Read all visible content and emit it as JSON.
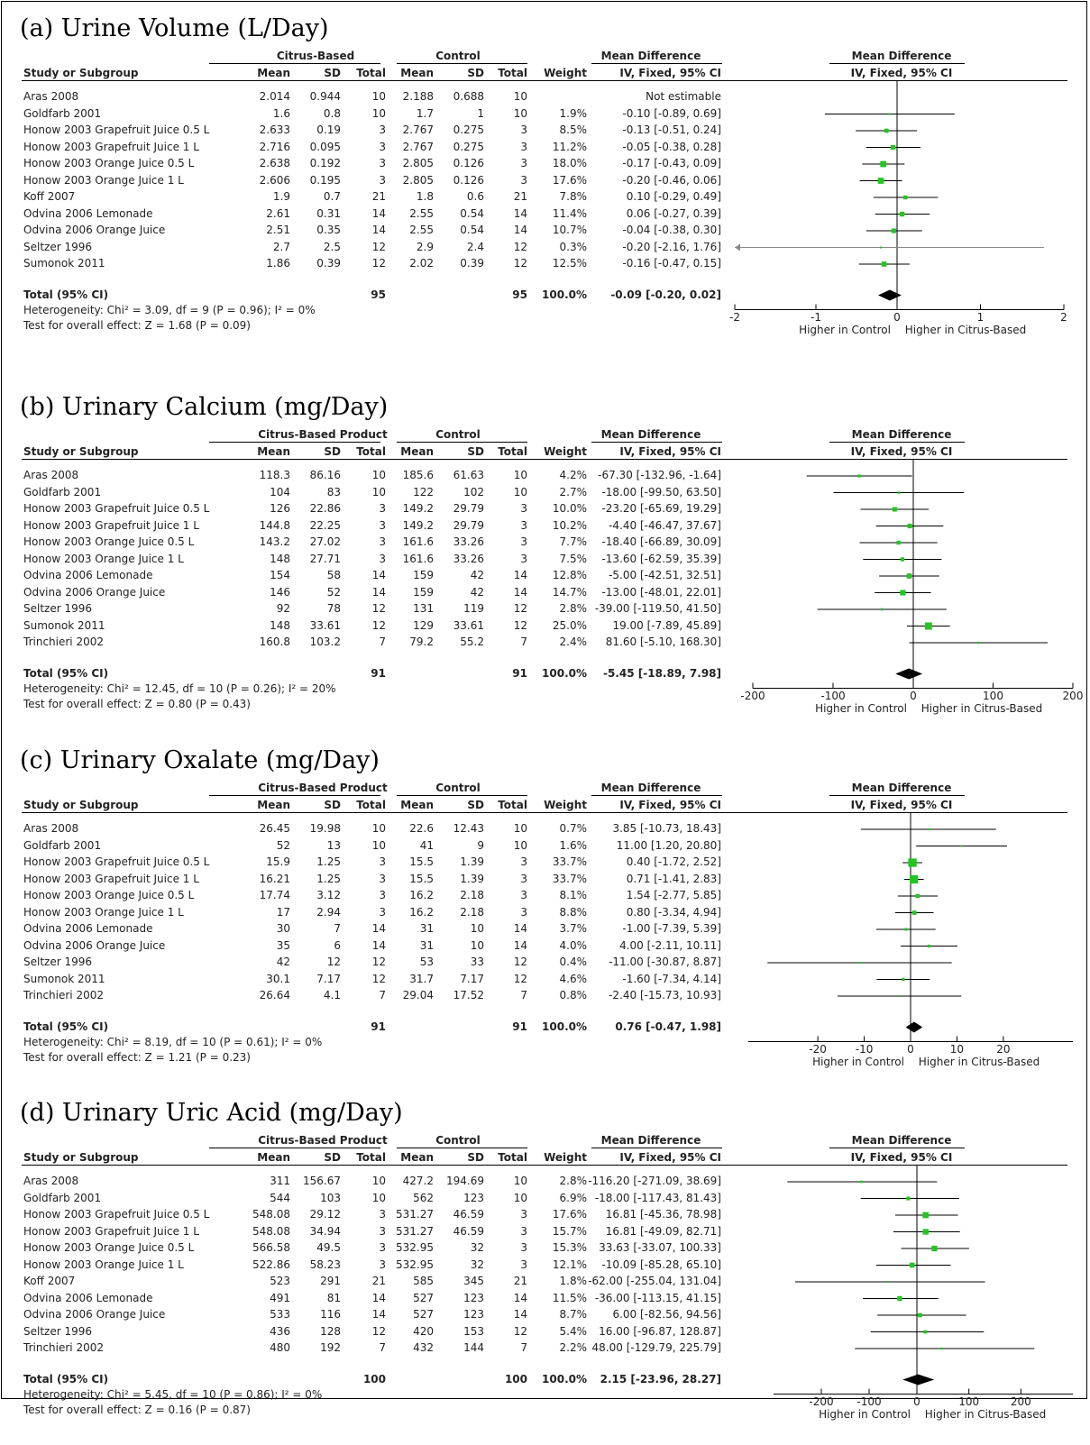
{
  "headers": {
    "study": "Study or Subgroup",
    "control": "Control",
    "mean": "Mean",
    "sd": "SD",
    "total": "Total",
    "weight": "Weight",
    "md_title": "Mean Difference",
    "md_method": "IV, Fixed, 95% CI",
    "higher_control": "Higher in Control",
    "higher_citrus": "Higher in Citrus-Based"
  },
  "colors": {
    "marker": "#22c522",
    "diamond": "#000000",
    "line": "#000000",
    "grey_line": "#888888"
  },
  "chart_data": [
    {
      "type": "forest",
      "title": "(a) Urine Volume (L/Day)",
      "group_label": "Citrus-Based",
      "xticks": [
        -2,
        -1,
        0,
        1,
        2
      ],
      "xlim": [
        -2,
        2
      ],
      "studies": [
        {
          "name": "Aras 2008",
          "c_mean": "2.014",
          "c_sd": "0.944",
          "c_total": "10",
          "k_mean": "2.188",
          "k_sd": "0.688",
          "k_total": "10",
          "weight": "",
          "ci_text": "Not estimable",
          "md": null,
          "lo": null,
          "hi": null
        },
        {
          "name": "Goldfarb 2001",
          "c_mean": "1.6",
          "c_sd": "0.8",
          "c_total": "10",
          "k_mean": "1.7",
          "k_sd": "1",
          "k_total": "10",
          "weight": "1.9%",
          "ci_text": "-0.10 [-0.89, 0.69]",
          "md": -0.1,
          "lo": -0.89,
          "hi": 0.69
        },
        {
          "name": "Honow 2003 Grapefruit Juice 0.5 L",
          "c_mean": "2.633",
          "c_sd": "0.19",
          "c_total": "3",
          "k_mean": "2.767",
          "k_sd": "0.275",
          "k_total": "3",
          "weight": "8.5%",
          "ci_text": "-0.13 [-0.51, 0.24]",
          "md": -0.13,
          "lo": -0.51,
          "hi": 0.24
        },
        {
          "name": "Honow 2003 Grapefruit Juice 1 L",
          "c_mean": "2.716",
          "c_sd": "0.095",
          "c_total": "3",
          "k_mean": "2.767",
          "k_sd": "0.275",
          "k_total": "3",
          "weight": "11.2%",
          "ci_text": "-0.05 [-0.38, 0.28]",
          "md": -0.05,
          "lo": -0.38,
          "hi": 0.28
        },
        {
          "name": "Honow 2003 Orange Juice 0.5 L",
          "c_mean": "2.638",
          "c_sd": "0.192",
          "c_total": "3",
          "k_mean": "2.805",
          "k_sd": "0.126",
          "k_total": "3",
          "weight": "18.0%",
          "ci_text": "-0.17 [-0.43, 0.09]",
          "md": -0.17,
          "lo": -0.43,
          "hi": 0.09
        },
        {
          "name": "Honow 2003 Orange Juice 1 L",
          "c_mean": "2.606",
          "c_sd": "0.195",
          "c_total": "3",
          "k_mean": "2.805",
          "k_sd": "0.126",
          "k_total": "3",
          "weight": "17.6%",
          "ci_text": "-0.20 [-0.46, 0.06]",
          "md": -0.2,
          "lo": -0.46,
          "hi": 0.06
        },
        {
          "name": "Koff 2007",
          "c_mean": "1.9",
          "c_sd": "0.7",
          "c_total": "21",
          "k_mean": "1.8",
          "k_sd": "0.6",
          "k_total": "21",
          "weight": "7.8%",
          "ci_text": "0.10 [-0.29, 0.49]",
          "md": 0.1,
          "lo": -0.29,
          "hi": 0.49
        },
        {
          "name": "Odvina 2006 Lemonade",
          "c_mean": "2.61",
          "c_sd": "0.31",
          "c_total": "14",
          "k_mean": "2.55",
          "k_sd": "0.54",
          "k_total": "14",
          "weight": "11.4%",
          "ci_text": "0.06 [-0.27, 0.39]",
          "md": 0.06,
          "lo": -0.27,
          "hi": 0.39
        },
        {
          "name": "Odvina 2006 Orange Juice",
          "c_mean": "2.51",
          "c_sd": "0.35",
          "c_total": "14",
          "k_mean": "2.55",
          "k_sd": "0.54",
          "k_total": "14",
          "weight": "10.7%",
          "ci_text": "-0.04 [-0.38, 0.30]",
          "md": -0.04,
          "lo": -0.38,
          "hi": 0.3
        },
        {
          "name": "Seltzer 1996",
          "c_mean": "2.7",
          "c_sd": "2.5",
          "c_total": "12",
          "k_mean": "2.9",
          "k_sd": "2.4",
          "k_total": "12",
          "weight": "0.3%",
          "ci_text": "-0.20 [-2.16, 1.76]",
          "md": -0.2,
          "lo": -2.16,
          "hi": 1.76
        },
        {
          "name": "Sumonok 2011",
          "c_mean": "1.86",
          "c_sd": "0.39",
          "c_total": "12",
          "k_mean": "2.02",
          "k_sd": "0.39",
          "k_total": "12",
          "weight": "12.5%",
          "ci_text": "-0.16 [-0.47, 0.15]",
          "md": -0.16,
          "lo": -0.47,
          "hi": 0.15
        }
      ],
      "total": {
        "label": "Total (95% CI)",
        "c_total": "95",
        "k_total": "95",
        "weight": "100.0%",
        "ci_text": "-0.09 [-0.20, 0.02]",
        "md": -0.09,
        "lo": -0.2,
        "hi": 0.02
      },
      "heterogeneity": "Heterogeneity: Chi² = 3.09, df = 9 (P = 0.96); I² = 0%",
      "overall": "Test for overall effect: Z = 1.68 (P = 0.09)"
    },
    {
      "type": "forest",
      "title": "(b) Urinary Calcium (mg/Day)",
      "group_label": "Citrus-Based Product",
      "xticks": [
        -200,
        -100,
        0,
        100,
        200
      ],
      "xlim": [
        -200,
        200
      ],
      "studies": [
        {
          "name": "Aras 2008",
          "c_mean": "118.3",
          "c_sd": "86.16",
          "c_total": "10",
          "k_mean": "185.6",
          "k_sd": "61.63",
          "k_total": "10",
          "weight": "4.2%",
          "ci_text": "-67.30 [-132.96, -1.64]",
          "md": -67.3,
          "lo": -132.96,
          "hi": -1.64
        },
        {
          "name": "Goldfarb 2001",
          "c_mean": "104",
          "c_sd": "83",
          "c_total": "10",
          "k_mean": "122",
          "k_sd": "102",
          "k_total": "10",
          "weight": "2.7%",
          "ci_text": "-18.00 [-99.50, 63.50]",
          "md": -18.0,
          "lo": -99.5,
          "hi": 63.5
        },
        {
          "name": "Honow 2003 Grapefruit Juice 0.5 L",
          "c_mean": "126",
          "c_sd": "22.86",
          "c_total": "3",
          "k_mean": "149.2",
          "k_sd": "29.79",
          "k_total": "3",
          "weight": "10.0%",
          "ci_text": "-23.20 [-65.69, 19.29]",
          "md": -23.2,
          "lo": -65.69,
          "hi": 19.29
        },
        {
          "name": "Honow 2003 Grapefruit Juice 1 L",
          "c_mean": "144.8",
          "c_sd": "22.25",
          "c_total": "3",
          "k_mean": "149.2",
          "k_sd": "29.79",
          "k_total": "3",
          "weight": "10.2%",
          "ci_text": "-4.40 [-46.47, 37.67]",
          "md": -4.4,
          "lo": -46.47,
          "hi": 37.67
        },
        {
          "name": "Honow 2003 Orange Juice 0.5 L",
          "c_mean": "143.2",
          "c_sd": "27.02",
          "c_total": "3",
          "k_mean": "161.6",
          "k_sd": "33.26",
          "k_total": "3",
          "weight": "7.7%",
          "ci_text": "-18.40 [-66.89, 30.09]",
          "md": -18.4,
          "lo": -66.89,
          "hi": 30.09
        },
        {
          "name": "Honow 2003 Orange Juice 1 L",
          "c_mean": "148",
          "c_sd": "27.71",
          "c_total": "3",
          "k_mean": "161.6",
          "k_sd": "33.26",
          "k_total": "3",
          "weight": "7.5%",
          "ci_text": "-13.60 [-62.59, 35.39]",
          "md": -13.6,
          "lo": -62.59,
          "hi": 35.39
        },
        {
          "name": "Odvina 2006 Lemonade",
          "c_mean": "154",
          "c_sd": "58",
          "c_total": "14",
          "k_mean": "159",
          "k_sd": "42",
          "k_total": "14",
          "weight": "12.8%",
          "ci_text": "-5.00 [-42.51, 32.51]",
          "md": -5.0,
          "lo": -42.51,
          "hi": 32.51
        },
        {
          "name": "Odvina 2006 Orange Juice",
          "c_mean": "146",
          "c_sd": "52",
          "c_total": "14",
          "k_mean": "159",
          "k_sd": "42",
          "k_total": "14",
          "weight": "14.7%",
          "ci_text": "-13.00 [-48.01, 22.01]",
          "md": -13.0,
          "lo": -48.01,
          "hi": 22.01
        },
        {
          "name": "Seltzer 1996",
          "c_mean": "92",
          "c_sd": "78",
          "c_total": "12",
          "k_mean": "131",
          "k_sd": "119",
          "k_total": "12",
          "weight": "2.8%",
          "ci_text": "-39.00 [-119.50, 41.50]",
          "md": -39.0,
          "lo": -119.5,
          "hi": 41.5
        },
        {
          "name": "Sumonok 2011",
          "c_mean": "148",
          "c_sd": "33.61",
          "c_total": "12",
          "k_mean": "129",
          "k_sd": "33.61",
          "k_total": "12",
          "weight": "25.0%",
          "ci_text": "19.00 [-7.89, 45.89]",
          "md": 19.0,
          "lo": -7.89,
          "hi": 45.89
        },
        {
          "name": "Trinchieri 2002",
          "c_mean": "160.8",
          "c_sd": "103.2",
          "c_total": "7",
          "k_mean": "79.2",
          "k_sd": "55.2",
          "k_total": "7",
          "weight": "2.4%",
          "ci_text": "81.60 [-5.10, 168.30]",
          "md": 81.6,
          "lo": -5.1,
          "hi": 168.3
        }
      ],
      "total": {
        "label": "Total (95% CI)",
        "c_total": "91",
        "k_total": "91",
        "weight": "100.0%",
        "ci_text": "-5.45 [-18.89, 7.98]",
        "md": -5.45,
        "lo": -18.89,
        "hi": 7.98
      },
      "heterogeneity": "Heterogeneity: Chi² = 12.45, df = 10 (P = 0.26); I² = 20%",
      "overall": "Test for overall effect: Z = 0.80 (P = 0.43)"
    },
    {
      "type": "forest",
      "title": "(c) Urinary Oxalate (mg/Day)",
      "group_label": "Citrus-Based Product",
      "xticks": [
        -20,
        -10,
        0,
        10,
        20
      ],
      "xlim": [
        -35,
        35
      ],
      "studies": [
        {
          "name": "Aras 2008",
          "c_mean": "26.45",
          "c_sd": "19.98",
          "c_total": "10",
          "k_mean": "22.6",
          "k_sd": "12.43",
          "k_total": "10",
          "weight": "0.7%",
          "ci_text": "3.85 [-10.73, 18.43]",
          "md": 3.85,
          "lo": -10.73,
          "hi": 18.43
        },
        {
          "name": "Goldfarb 2001",
          "c_mean": "52",
          "c_sd": "13",
          "c_total": "10",
          "k_mean": "41",
          "k_sd": "9",
          "k_total": "10",
          "weight": "1.6%",
          "ci_text": "11.00 [1.20, 20.80]",
          "md": 11.0,
          "lo": 1.2,
          "hi": 20.8
        },
        {
          "name": "Honow 2003 Grapefruit Juice 0.5 L",
          "c_mean": "15.9",
          "c_sd": "1.25",
          "c_total": "3",
          "k_mean": "15.5",
          "k_sd": "1.39",
          "k_total": "3",
          "weight": "33.7%",
          "ci_text": "0.40 [-1.72, 2.52]",
          "md": 0.4,
          "lo": -1.72,
          "hi": 2.52
        },
        {
          "name": "Honow 2003 Grapefruit Juice 1 L",
          "c_mean": "16.21",
          "c_sd": "1.25",
          "c_total": "3",
          "k_mean": "15.5",
          "k_sd": "1.39",
          "k_total": "3",
          "weight": "33.7%",
          "ci_text": "0.71 [-1.41, 2.83]",
          "md": 0.71,
          "lo": -1.41,
          "hi": 2.83
        },
        {
          "name": "Honow 2003 Orange Juice 0.5 L",
          "c_mean": "17.74",
          "c_sd": "3.12",
          "c_total": "3",
          "k_mean": "16.2",
          "k_sd": "2.18",
          "k_total": "3",
          "weight": "8.1%",
          "ci_text": "1.54 [-2.77, 5.85]",
          "md": 1.54,
          "lo": -2.77,
          "hi": 5.85
        },
        {
          "name": "Honow 2003 Orange Juice 1 L",
          "c_mean": "17",
          "c_sd": "2.94",
          "c_total": "3",
          "k_mean": "16.2",
          "k_sd": "2.18",
          "k_total": "3",
          "weight": "8.8%",
          "ci_text": "0.80 [-3.34, 4.94]",
          "md": 0.8,
          "lo": -3.34,
          "hi": 4.94
        },
        {
          "name": "Odvina 2006 Lemonade",
          "c_mean": "30",
          "c_sd": "7",
          "c_total": "14",
          "k_mean": "31",
          "k_sd": "10",
          "k_total": "14",
          "weight": "3.7%",
          "ci_text": "-1.00 [-7.39, 5.39]",
          "md": -1.0,
          "lo": -7.39,
          "hi": 5.39
        },
        {
          "name": "Odvina 2006 Orange Juice",
          "c_mean": "35",
          "c_sd": "6",
          "c_total": "14",
          "k_mean": "31",
          "k_sd": "10",
          "k_total": "14",
          "weight": "4.0%",
          "ci_text": "4.00 [-2.11, 10.11]",
          "md": 4.0,
          "lo": -2.11,
          "hi": 10.11
        },
        {
          "name": "Seltzer 1996",
          "c_mean": "42",
          "c_sd": "12",
          "c_total": "12",
          "k_mean": "53",
          "k_sd": "33",
          "k_total": "12",
          "weight": "0.4%",
          "ci_text": "-11.00 [-30.87, 8.87]",
          "md": -11.0,
          "lo": -30.87,
          "hi": 8.87
        },
        {
          "name": "Sumonok 2011",
          "c_mean": "30.1",
          "c_sd": "7.17",
          "c_total": "12",
          "k_mean": "31.7",
          "k_sd": "7.17",
          "k_total": "12",
          "weight": "4.6%",
          "ci_text": "-1.60 [-7.34, 4.14]",
          "md": -1.6,
          "lo": -7.34,
          "hi": 4.14
        },
        {
          "name": "Trinchieri 2002",
          "c_mean": "26.64",
          "c_sd": "4.1",
          "c_total": "7",
          "k_mean": "29.04",
          "k_sd": "17.52",
          "k_total": "7",
          "weight": "0.8%",
          "ci_text": "-2.40 [-15.73, 10.93]",
          "md": -2.4,
          "lo": -15.73,
          "hi": 10.93
        }
      ],
      "total": {
        "label": "Total (95% CI)",
        "c_total": "91",
        "k_total": "91",
        "weight": "100.0%",
        "ci_text": "0.76 [-0.47, 1.98]",
        "md": 0.76,
        "lo": -0.47,
        "hi": 1.98
      },
      "heterogeneity": "Heterogeneity: Chi² = 8.19, df = 10 (P = 0.61); I² = 0%",
      "overall": "Test for overall effect: Z = 1.21 (P = 0.23)"
    },
    {
      "type": "forest",
      "title": "(d) Urinary Uric Acid (mg/Day)",
      "group_label": "Citrus-Based Product",
      "xticks": [
        -200,
        -100,
        0,
        100,
        200
      ],
      "xlim": [
        -300,
        300
      ],
      "studies": [
        {
          "name": "Aras 2008",
          "c_mean": "311",
          "c_sd": "156.67",
          "c_total": "10",
          "k_mean": "427.2",
          "k_sd": "194.69",
          "k_total": "10",
          "weight": "2.8%",
          "ci_text": "-116.20 [-271.09, 38.69]",
          "md": -116.2,
          "lo": -271.09,
          "hi": 38.69
        },
        {
          "name": "Goldfarb 2001",
          "c_mean": "544",
          "c_sd": "103",
          "c_total": "10",
          "k_mean": "562",
          "k_sd": "123",
          "k_total": "10",
          "weight": "6.9%",
          "ci_text": "-18.00 [-117.43, 81.43]",
          "md": -18.0,
          "lo": -117.43,
          "hi": 81.43
        },
        {
          "name": "Honow 2003 Grapefruit Juice 0.5 L",
          "c_mean": "548.08",
          "c_sd": "29.12",
          "c_total": "3",
          "k_mean": "531.27",
          "k_sd": "46.59",
          "k_total": "3",
          "weight": "17.6%",
          "ci_text": "16.81 [-45.36, 78.98]",
          "md": 16.81,
          "lo": -45.36,
          "hi": 78.98
        },
        {
          "name": "Honow 2003 Grapefruit Juice 1 L",
          "c_mean": "548.08",
          "c_sd": "34.94",
          "c_total": "3",
          "k_mean": "531.27",
          "k_sd": "46.59",
          "k_total": "3",
          "weight": "15.7%",
          "ci_text": "16.81 [-49.09, 82.71]",
          "md": 16.81,
          "lo": -49.09,
          "hi": 82.71
        },
        {
          "name": "Honow 2003 Orange Juice 0.5 L",
          "c_mean": "566.58",
          "c_sd": "49.5",
          "c_total": "3",
          "k_mean": "532.95",
          "k_sd": "32",
          "k_total": "3",
          "weight": "15.3%",
          "ci_text": "33.63 [-33.07, 100.33]",
          "md": 33.63,
          "lo": -33.07,
          "hi": 100.33
        },
        {
          "name": "Honow 2003 Orange Juice 1 L",
          "c_mean": "522.86",
          "c_sd": "58.23",
          "c_total": "3",
          "k_mean": "532.95",
          "k_sd": "32",
          "k_total": "3",
          "weight": "12.1%",
          "ci_text": "-10.09 [-85.28, 65.10]",
          "md": -10.09,
          "lo": -85.28,
          "hi": 65.1
        },
        {
          "name": "Koff 2007",
          "c_mean": "523",
          "c_sd": "291",
          "c_total": "21",
          "k_mean": "585",
          "k_sd": "345",
          "k_total": "21",
          "weight": "1.8%",
          "ci_text": "-62.00 [-255.04, 131.04]",
          "md": -62.0,
          "lo": -255.04,
          "hi": 131.04
        },
        {
          "name": "Odvina 2006 Lemonade",
          "c_mean": "491",
          "c_sd": "81",
          "c_total": "14",
          "k_mean": "527",
          "k_sd": "123",
          "k_total": "14",
          "weight": "11.5%",
          "ci_text": "-36.00 [-113.15, 41.15]",
          "md": -36.0,
          "lo": -113.15,
          "hi": 41.15
        },
        {
          "name": "Odvina 2006 Orange Juice",
          "c_mean": "533",
          "c_sd": "116",
          "c_total": "14",
          "k_mean": "527",
          "k_sd": "123",
          "k_total": "14",
          "weight": "8.7%",
          "ci_text": "6.00 [-82.56, 94.56]",
          "md": 6.0,
          "lo": -82.56,
          "hi": 94.56
        },
        {
          "name": "Seltzer 1996",
          "c_mean": "436",
          "c_sd": "128",
          "c_total": "12",
          "k_mean": "420",
          "k_sd": "153",
          "k_total": "12",
          "weight": "5.4%",
          "ci_text": "16.00 [-96.87, 128.87]",
          "md": 16.0,
          "lo": -96.87,
          "hi": 128.87
        },
        {
          "name": "Trinchieri 2002",
          "c_mean": "480",
          "c_sd": "192",
          "c_total": "7",
          "k_mean": "432",
          "k_sd": "144",
          "k_total": "7",
          "weight": "2.2%",
          "ci_text": "48.00 [-129.79, 225.79]",
          "md": 48.0,
          "lo": -129.79,
          "hi": 225.79
        }
      ],
      "total": {
        "label": "Total (95% CI)",
        "c_total": "100",
        "k_total": "100",
        "weight": "100.0%",
        "ci_text": "2.15 [-23.96, 28.27]",
        "md": 2.15,
        "lo": -23.96,
        "hi": 28.27
      },
      "heterogeneity": "Heterogeneity: Chi² = 5.45, df = 10 (P = 0.86); I² = 0%",
      "overall": "Test for overall effect: Z = 0.16 (P = 0.87)"
    }
  ]
}
